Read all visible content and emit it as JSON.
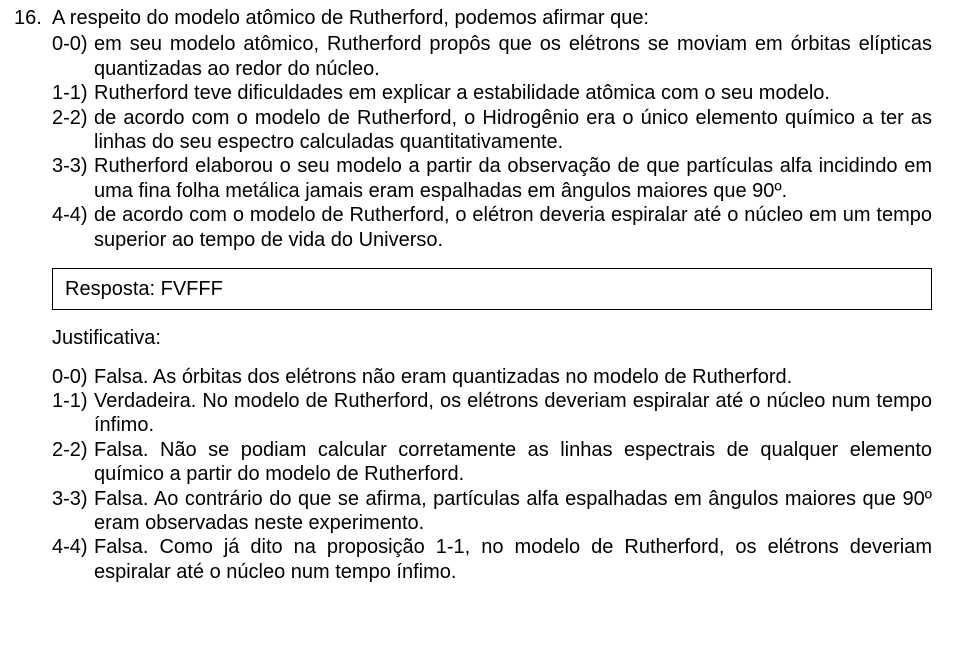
{
  "question": {
    "number": "16.",
    "stem": "A respeito do modelo atômico de Rutherford, podemos afirmar que:",
    "options": [
      {
        "key": "0-0)",
        "text": "em seu modelo atômico, Rutherford propôs que os elétrons se moviam em órbitas elípticas quantizadas ao redor do núcleo."
      },
      {
        "key": "1-1)",
        "text": "Rutherford teve dificuldades em explicar a estabilidade atômica com o seu modelo."
      },
      {
        "key": "2-2)",
        "text": "de acordo com o modelo de Rutherford, o Hidrogênio era o único elemento químico a ter as linhas do seu espectro calculadas quantitativamente."
      },
      {
        "key": "3-3)",
        "text": "Rutherford elaborou o seu modelo a partir da observação de que partículas alfa incidindo em uma fina folha metálica jamais eram espalhadas em ângulos maiores que 90º."
      },
      {
        "key": "4-4)",
        "text": "de acordo com o modelo de Rutherford, o elétron deveria espiralar até o núcleo em um tempo superior ao tempo de vida do Universo."
      }
    ]
  },
  "answer": {
    "label": "Resposta:",
    "value": "FVFFF"
  },
  "justification": {
    "title": "Justificativa:",
    "items": [
      {
        "key": "0-0)",
        "text": "Falsa. As órbitas dos elétrons não eram quantizadas no modelo de Rutherford."
      },
      {
        "key": "1-1)",
        "text": "Verdadeira. No modelo de Rutherford, os elétrons deveriam espiralar até o núcleo num tempo ínfimo."
      },
      {
        "key": "2-2)",
        "text": "Falsa. Não se podiam calcular corretamente as linhas espectrais de qualquer elemento químico a partir do modelo de Rutherford."
      },
      {
        "key": "3-3)",
        "text": "Falsa. Ao contrário do que se afirma, partículas alfa espalhadas em ângulos maiores que 90º eram observadas neste experimento."
      },
      {
        "key": "4-4)",
        "text": "Falsa. Como já dito na proposição 1-1, no modelo de Rutherford, os elétrons deveriam espiralar até o núcleo num tempo ínfimo."
      }
    ]
  }
}
